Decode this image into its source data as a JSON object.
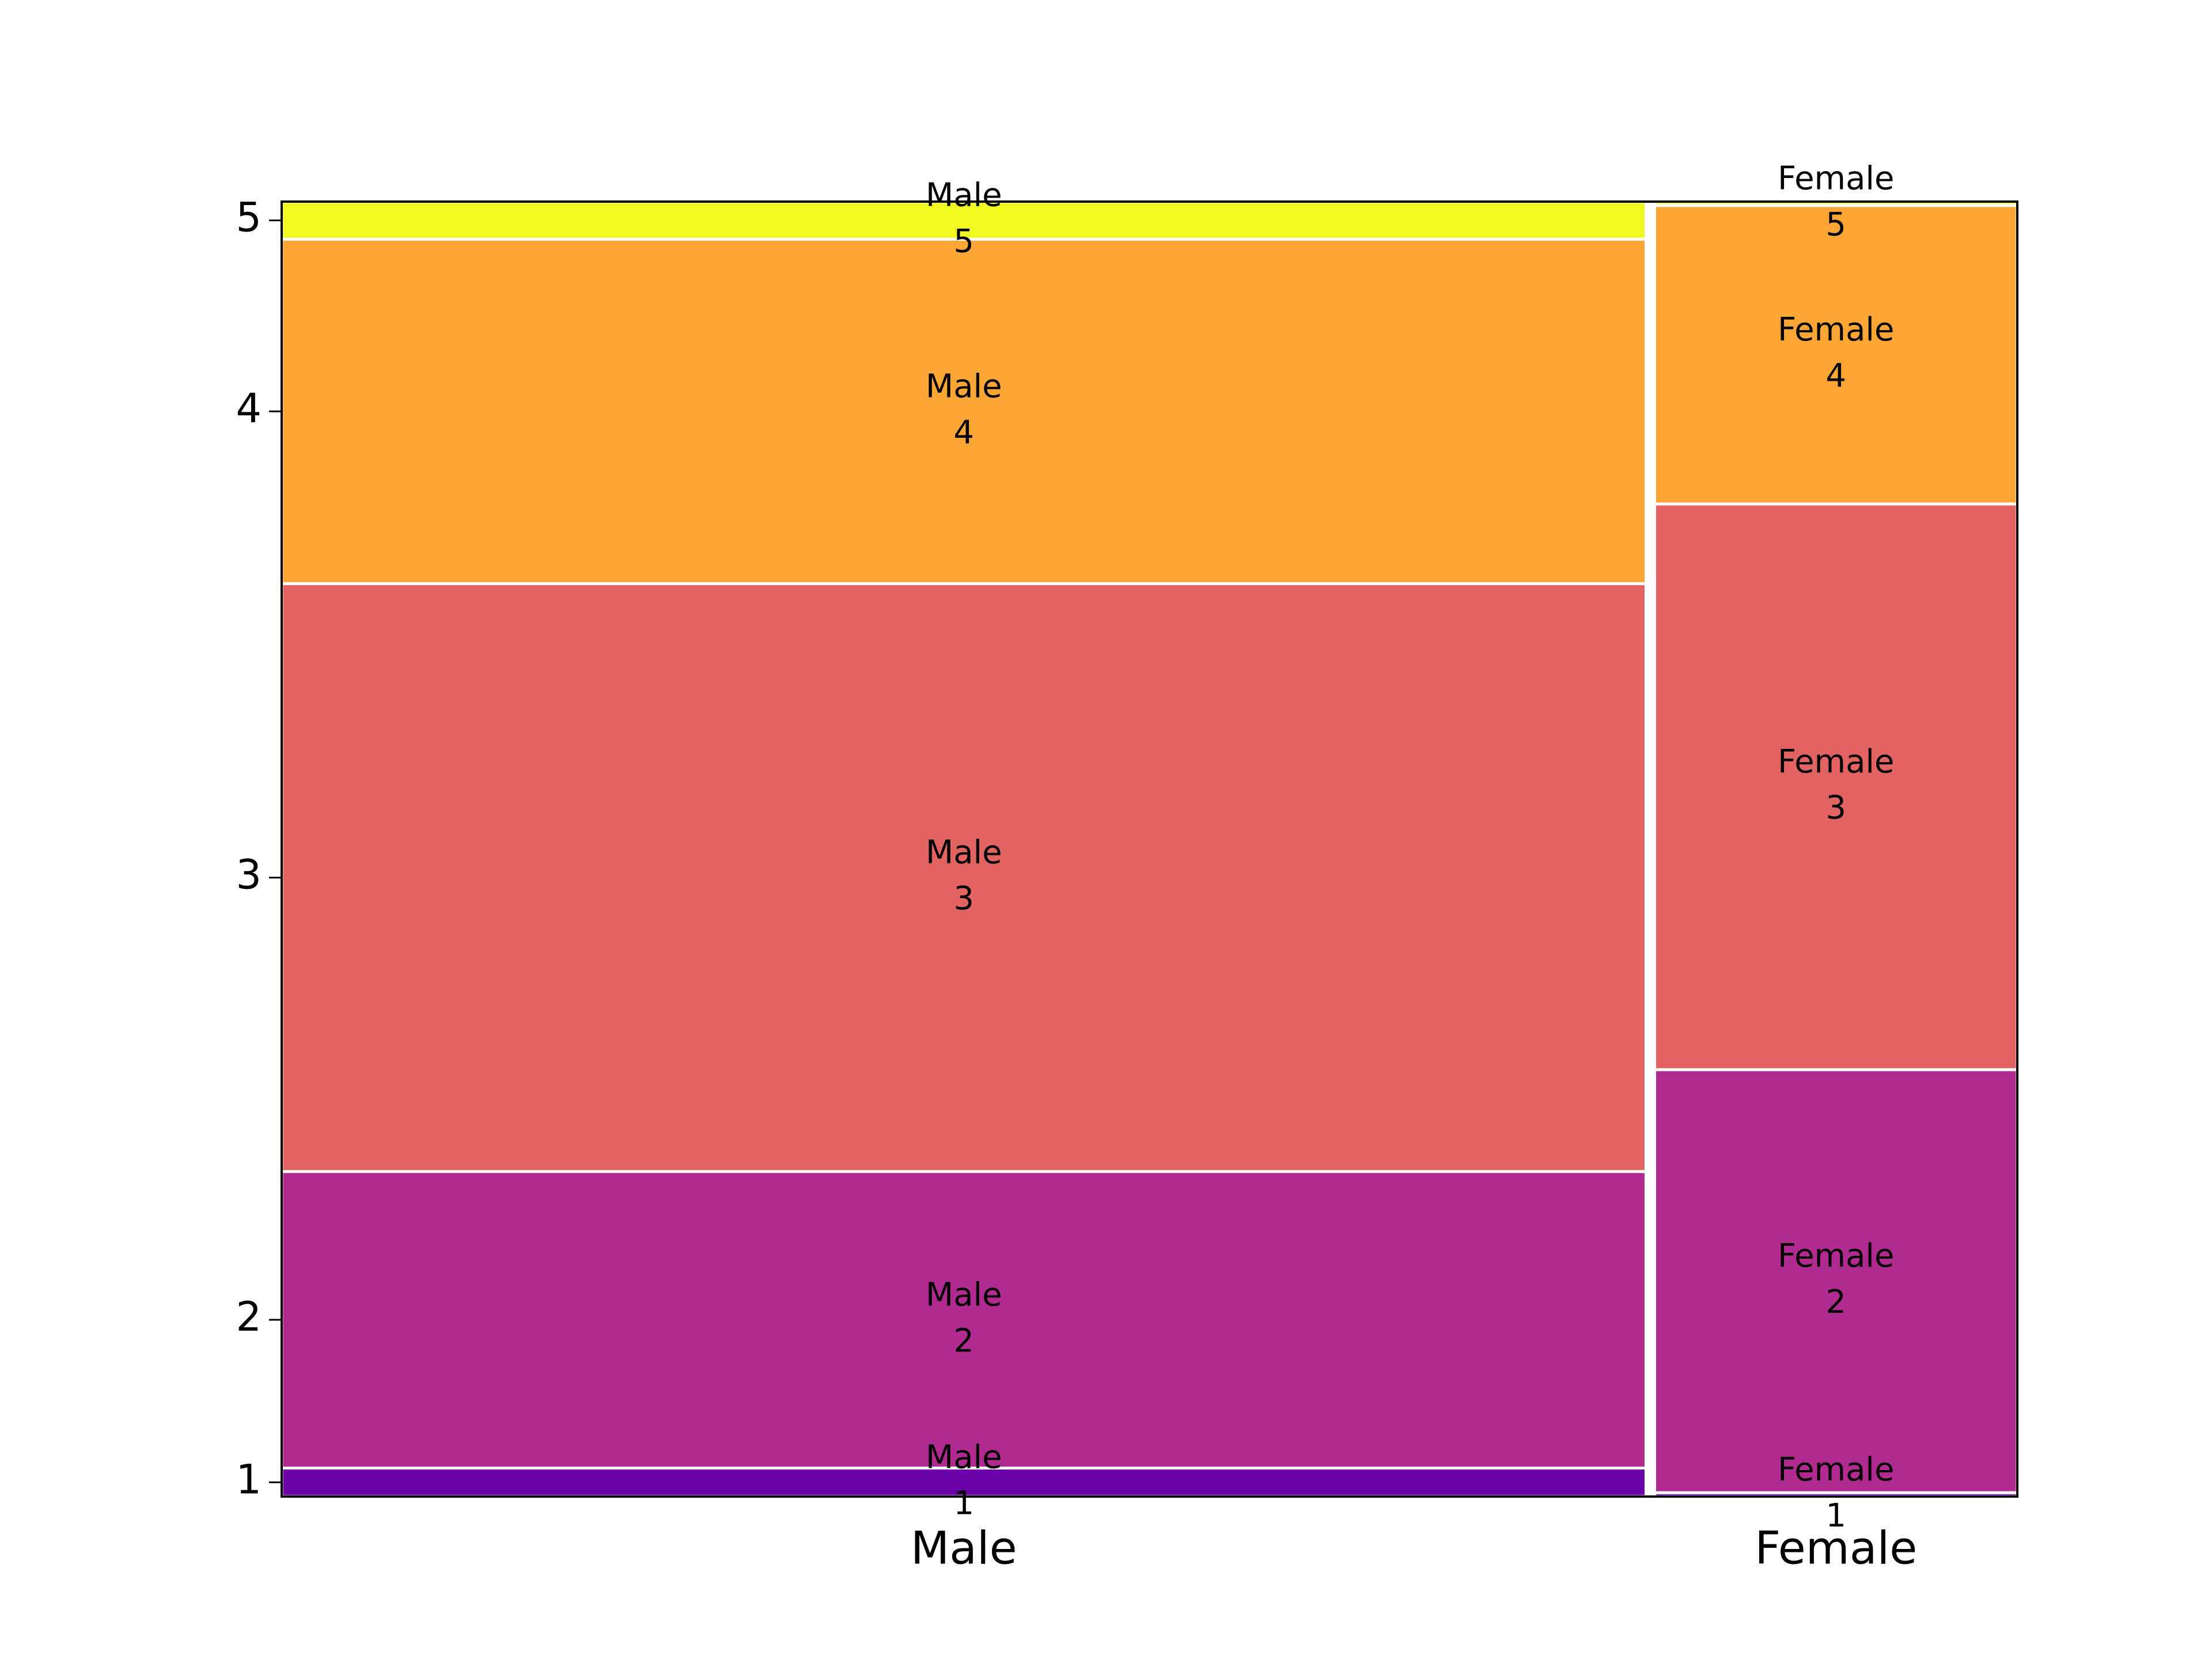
{
  "chart_data": {
    "type": "mosaic",
    "columns": [
      "Male",
      "Female"
    ],
    "column_shares": [
      0.79,
      0.21
    ],
    "series": [
      {
        "name": "1",
        "color": "#6a00a8",
        "values": [
          0.022,
          0.003
        ]
      },
      {
        "name": "2",
        "color": "#b12a90",
        "values": [
          0.229,
          0.326
        ]
      },
      {
        "name": "3",
        "color": "#e16462",
        "values": [
          0.454,
          0.436
        ]
      },
      {
        "name": "4",
        "color": "#fca636",
        "values": [
          0.266,
          0.23
        ]
      },
      {
        "name": "5",
        "color": "#f0f921",
        "values": [
          0.029,
          0.003
        ]
      }
    ]
  }
}
